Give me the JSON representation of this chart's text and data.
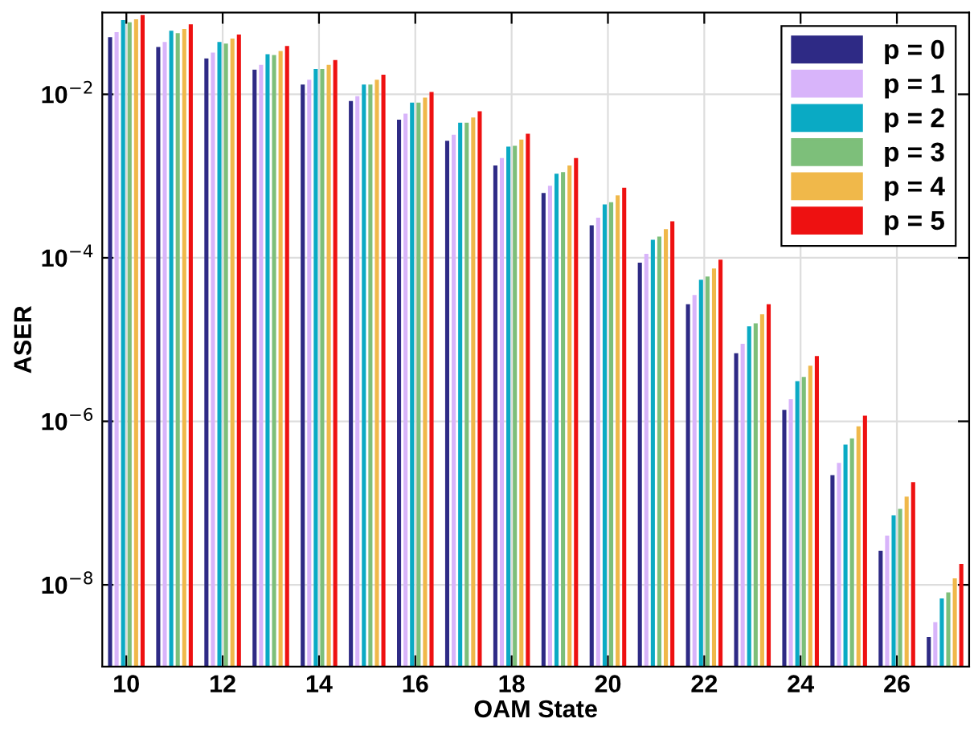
{
  "chart_data": {
    "type": "bar",
    "xlabel": "OAM State",
    "ylabel": "ASER",
    "x": [
      10,
      11,
      12,
      13,
      14,
      15,
      16,
      17,
      18,
      19,
      20,
      21,
      22,
      23,
      24,
      25,
      26,
      27
    ],
    "series": [
      {
        "name": "p = 0",
        "color": "#2e2a85",
        "values": [
          0.05,
          0.038,
          0.0275,
          0.02,
          0.0132,
          0.0083,
          0.0049,
          0.0027,
          0.00135,
          0.00062,
          0.00025,
          8.7e-05,
          2.7e-05,
          6.8e-06,
          1.38e-06,
          2.2e-07,
          2.6e-08,
          2.3e-09
        ]
      },
      {
        "name": "p = 1",
        "color": "#d8b4fa",
        "values": [
          0.0575,
          0.0437,
          0.0324,
          0.0229,
          0.0151,
          0.0095,
          0.0058,
          0.0032,
          0.00166,
          0.00076,
          0.00031,
          0.000112,
          3.5e-05,
          8.9e-06,
          1.86e-06,
          3.1e-07,
          4e-08,
          3.5e-09
        ]
      },
      {
        "name": "p = 2",
        "color": "#0aaac4",
        "values": [
          0.081,
          0.06,
          0.0437,
          0.0309,
          0.0204,
          0.0132,
          0.0079,
          0.0045,
          0.0023,
          0.00107,
          0.00045,
          0.000166,
          5.4e-05,
          1.45e-05,
          3.1e-06,
          5.2e-07,
          7.1e-08,
          6.8e-09
        ]
      },
      {
        "name": "p = 3",
        "color": "#7dbf7a",
        "values": [
          0.076,
          0.056,
          0.0417,
          0.0302,
          0.0204,
          0.0132,
          0.0079,
          0.0045,
          0.00234,
          0.00112,
          0.00048,
          0.000182,
          5.9e-05,
          1.58e-05,
          3.5e-06,
          6.2e-07,
          8.5e-08,
          8.1e-09
        ]
      },
      {
        "name": "p = 4",
        "color": "#f0b84a",
        "values": [
          0.083,
          0.063,
          0.048,
          0.0339,
          0.0229,
          0.0151,
          0.0091,
          0.0052,
          0.0028,
          0.00135,
          0.00058,
          0.000224,
          7.4e-05,
          2.04e-05,
          4.8e-06,
          8.7e-07,
          1.2e-07,
          1.2e-08
        ]
      },
      {
        "name": "p = 5",
        "color": "#ee1111",
        "values": [
          0.093,
          0.072,
          0.0537,
          0.0389,
          0.0263,
          0.0174,
          0.0107,
          0.0062,
          0.0033,
          0.00166,
          0.00072,
          0.00028,
          9.5e-05,
          2.7e-05,
          6.3e-06,
          1.17e-06,
          1.8e-07,
          1.8e-08
        ]
      }
    ],
    "log": "y",
    "xlim": [
      9.5,
      27.5
    ],
    "xticks": [
      10,
      12,
      14,
      16,
      18,
      20,
      22,
      24,
      26
    ],
    "ylim": [
      1e-09,
      0.1
    ],
    "yticks": [
      {
        "value": 0.01,
        "label": "10$^{−2}$"
      },
      {
        "value": 0.0001,
        "label": "10$^{−4}$"
      },
      {
        "value": 1e-06,
        "label": "10$^{−6}$"
      },
      {
        "value": 1e-08,
        "label": "10$^{−8}$"
      }
    ],
    "grid": true,
    "legend": "top right"
  }
}
